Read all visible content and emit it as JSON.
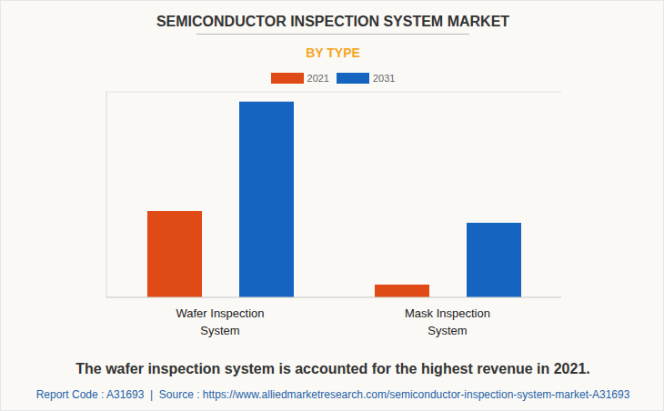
{
  "chart_data": {
    "type": "bar",
    "title": "SEMICONDUCTOR INSPECTION SYSTEM MARKET",
    "subtitle": "BY TYPE",
    "categories": [
      "Wafer Inspection System",
      "Mask Inspection System"
    ],
    "series": [
      {
        "name": "2021",
        "color": "#e04a17",
        "values": [
          3.78,
          0.56
        ]
      },
      {
        "name": "2031",
        "color": "#1565c0",
        "values": [
          8.57,
          3.27
        ]
      }
    ],
    "ylim": [
      0,
      9
    ],
    "yticks": [
      0,
      1,
      2,
      3,
      4,
      5,
      6,
      7,
      8,
      9
    ],
    "grid": true,
    "legend": "top",
    "tick_labels": false,
    "caption": "The wafer inspection system is accounted for the highest revenue in 2021.",
    "source": "Report Code : A31693  |  Source : https://www.alliedmarketresearch.com/semiconductor-inspection-system-market-A31693"
  }
}
